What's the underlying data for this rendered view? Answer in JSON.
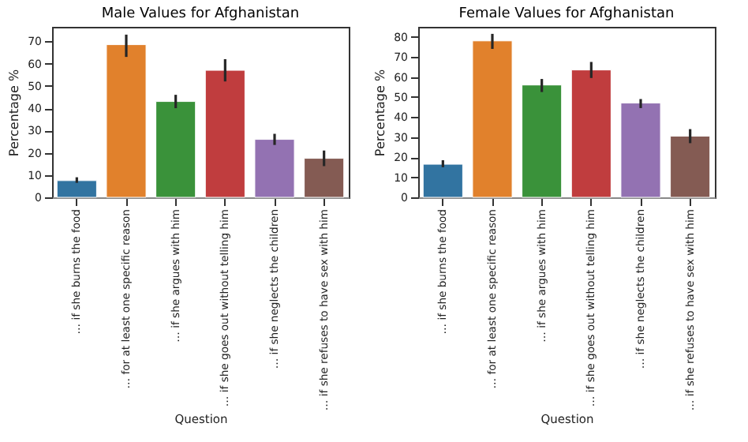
{
  "chart_data": [
    {
      "type": "bar",
      "title": "Male Values for Afghanistan",
      "xlabel": "Question",
      "ylabel": "Percentage %",
      "categories": [
        "… if she burns the food",
        "… for at least one specific reason",
        "… if she argues with him",
        "… if she goes out without telling him",
        "… if she neglects the children",
        "… if she refuses to have sex with him"
      ],
      "values": [
        7.5,
        68.5,
        43,
        57,
        26,
        17.5
      ],
      "colors": [
        "#3274a1",
        "#e1812c",
        "#3a923a",
        "#c03d3e",
        "#9372b2",
        "#845b53"
      ],
      "errors": [
        [
          6.5,
          9
        ],
        [
          63,
          73
        ],
        [
          40,
          46
        ],
        [
          52,
          62
        ],
        [
          23.5,
          28.5
        ],
        [
          14,
          21
        ]
      ],
      "ylim": [
        0,
        76.5
      ],
      "yticks": [
        0,
        10,
        20,
        30,
        40,
        50,
        60,
        70
      ],
      "grid": false,
      "legend": false
    },
    {
      "type": "bar",
      "title": "Female Values for Afghanistan",
      "xlabel": "Question",
      "ylabel": "Percentage %",
      "categories": [
        "… if she burns the food",
        "… for at least one specific reason",
        "… if she argues with him",
        "… if she goes out without telling him",
        "… if she neglects the children",
        "… if she refuses to have sex with him"
      ],
      "values": [
        16.5,
        78,
        56,
        63.5,
        47,
        30.5
      ],
      "colors": [
        "#3274a1",
        "#e1812c",
        "#3a923a",
        "#c03d3e",
        "#9372b2",
        "#845b53"
      ],
      "errors": [
        [
          15,
          18.5
        ],
        [
          74,
          81.5
        ],
        [
          52.5,
          59
        ],
        [
          59.5,
          67.5
        ],
        [
          44.5,
          49
        ],
        [
          27,
          34
        ]
      ],
      "ylim": [
        0,
        85
      ],
      "yticks": [
        0,
        10,
        20,
        30,
        40,
        50,
        60,
        70,
        80
      ],
      "grid": false,
      "legend": false
    }
  ]
}
